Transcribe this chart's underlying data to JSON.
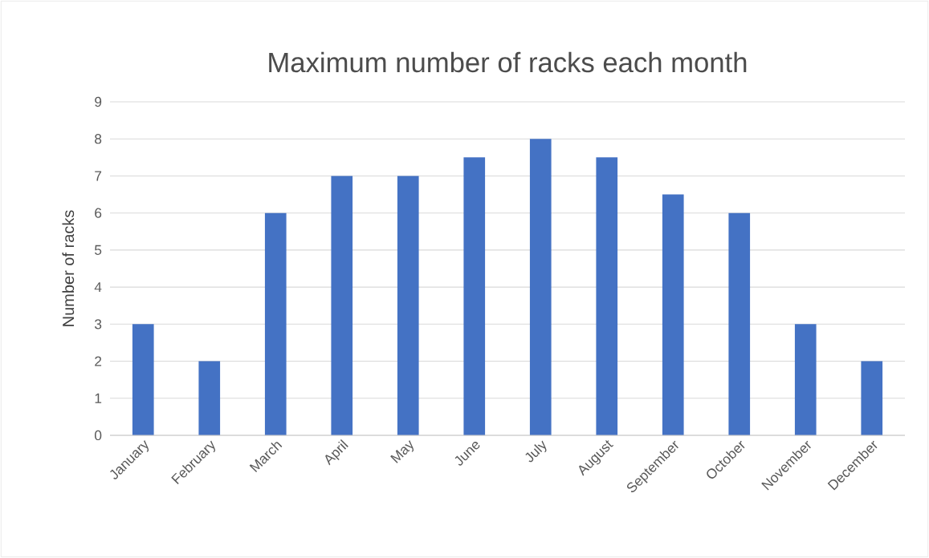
{
  "chart_data": {
    "type": "bar",
    "title": "Maximum number of racks each month",
    "ylabel": "Number  of racks",
    "categories": [
      "January",
      "February",
      "March",
      "April",
      "May",
      "June",
      "July",
      "August",
      "September",
      "October",
      "November",
      "December"
    ],
    "values": [
      3,
      2,
      6,
      7,
      7,
      7.5,
      8,
      7.5,
      6.5,
      6,
      3,
      2
    ],
    "color": "#4472c4",
    "ylim": [
      0,
      9
    ],
    "yticks": [
      0,
      1,
      2,
      3,
      4,
      5,
      6,
      7,
      8,
      9
    ],
    "grid": "y"
  }
}
